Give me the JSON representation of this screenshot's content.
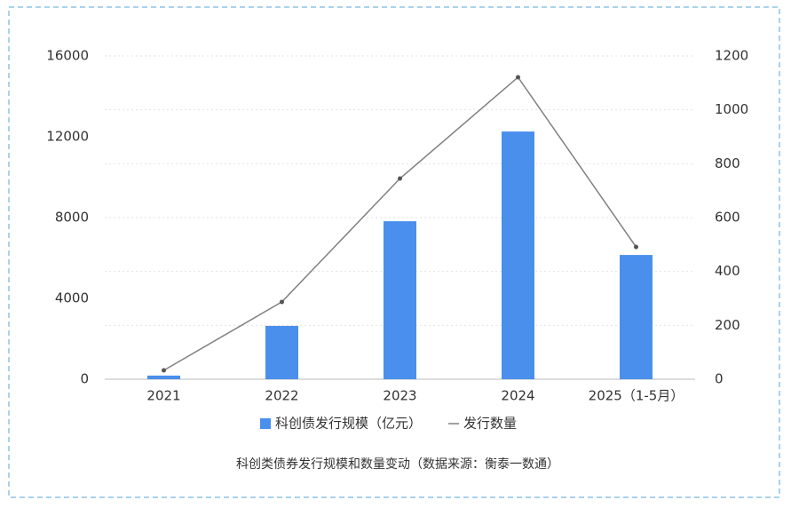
{
  "chart_data": {
    "type": "bar_line",
    "caption": "科创类债券发行规模和数量变动（数据来源：衡泰一数通）",
    "categories": [
      "2021",
      "2022",
      "2023",
      "2024",
      "2025（1-5月）"
    ],
    "series": [
      {
        "name": "科创债发行规模（亿元）",
        "color": "#4a8fec",
        "type": "bar",
        "values": [
          180,
          2640,
          7820,
          12260,
          6150
        ]
      },
      {
        "name": "发行数量",
        "color": "#808080",
        "type": "line",
        "axis": "y2",
        "values": [
          33,
          287,
          745,
          1121,
          491
        ]
      }
    ],
    "ylim": [
      0,
      16000
    ],
    "yticks": [
      0,
      4000,
      8000,
      12000,
      16000
    ],
    "y2lim": [
      0,
      1200
    ],
    "y2ticks": [
      0,
      200,
      400,
      600,
      800,
      1000,
      1200
    ],
    "grid": true
  }
}
